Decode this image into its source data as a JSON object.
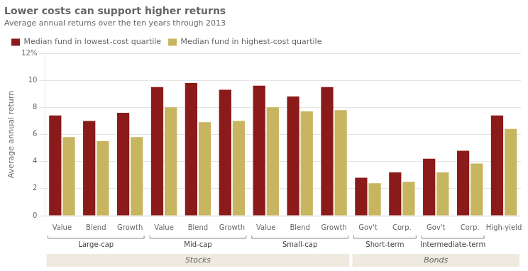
{
  "chart_data": {
    "type": "bar",
    "title": "Lower costs can support higher returns",
    "subtitle": "Average annual returns over the ten years through 2013",
    "ylabel": "Average annual return",
    "categories": [
      "Value",
      "Blend",
      "Growth",
      "Value",
      "Blend",
      "Growth",
      "Value",
      "Blend",
      "Growth",
      "Gov't",
      "Corp.",
      "Gov't",
      "Corp.",
      "High-yield"
    ],
    "groups": [
      "Large-cap",
      "Large-cap",
      "Large-cap",
      "Mid-cap",
      "Mid-cap",
      "Mid-cap",
      "Small-cap",
      "Small-cap",
      "Small-cap",
      "Short-term",
      "Short-term",
      "Intermediate-term",
      "Intermediate-term",
      null
    ],
    "sections": [
      "Stocks",
      "Stocks",
      "Stocks",
      "Stocks",
      "Stocks",
      "Stocks",
      "Stocks",
      "Stocks",
      "Stocks",
      "Bonds",
      "Bonds",
      "Bonds",
      "Bonds",
      "Bonds"
    ],
    "series": [
      {
        "name": "Median fund in lowest-cost quartile",
        "color": "#8B1A1A",
        "values": [
          7.4,
          7.0,
          7.6,
          9.5,
          9.8,
          9.3,
          9.6,
          8.8,
          9.5,
          2.8,
          3.2,
          4.2,
          4.8,
          7.4
        ]
      },
      {
        "name": "Median fund in highest-cost quartile",
        "color": "#C8B560",
        "values": [
          5.8,
          5.5,
          5.8,
          8.0,
          6.9,
          7.0,
          8.0,
          7.7,
          7.8,
          2.4,
          2.5,
          3.2,
          3.85,
          6.4
        ]
      }
    ],
    "ylim": [
      0,
      12
    ],
    "yticks": [
      0,
      2,
      4,
      6,
      8,
      10,
      {
        "value": 12,
        "label": "12%"
      }
    ],
    "grid": true,
    "legend": "top"
  }
}
